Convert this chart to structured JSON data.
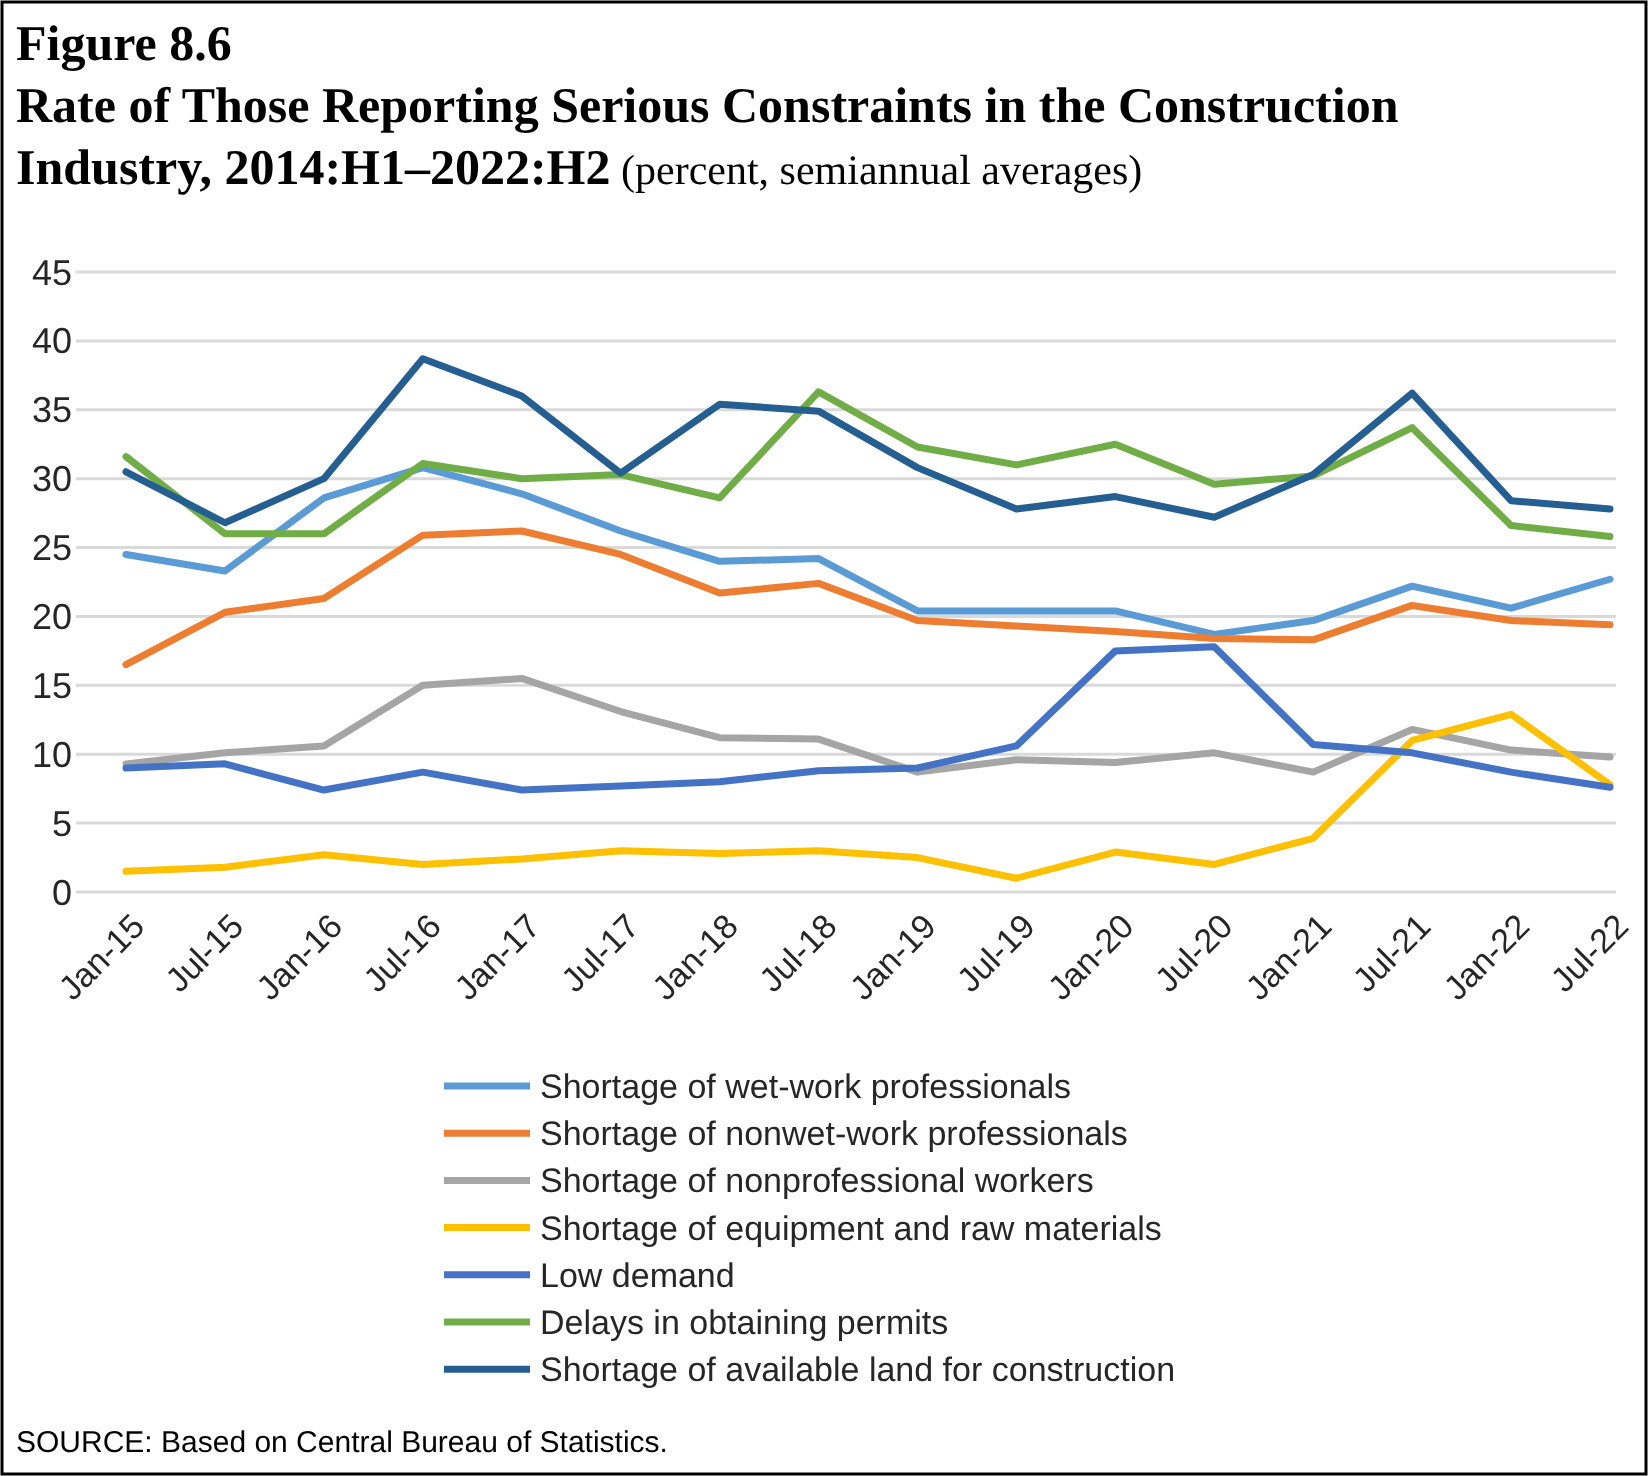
{
  "chart_data": {
    "type": "line",
    "title": "Figure 8.6\nRate of Those Reporting Serious Constraints in the Construction\nIndustry, 2014:H1–2022:H2",
    "subtitle": "(percent, semiannual averages)",
    "categories": [
      "Jan-15",
      "Jul-15",
      "Jan-16",
      "Jul-16",
      "Jan-17",
      "Jul-17",
      "Jan-18",
      "Jul-18",
      "Jan-19",
      "Jul-19",
      "Jan-20",
      "Jul-20",
      "Jan-21",
      "Jul-21",
      "Jan-22",
      "Jul-22"
    ],
    "ylim": [
      0,
      45
    ],
    "yticks": [
      0,
      5,
      10,
      15,
      20,
      25,
      30,
      35,
      40,
      45
    ],
    "grid": "y",
    "legend": "bottom",
    "marker": "none",
    "line_style": "solid",
    "annotations": [
      "SOURCE: Based on Central Bureau of Statistics."
    ],
    "series": [
      {
        "name": "Shortage of wet-work professionals",
        "color": "#5b9bd5",
        "values": [
          24.5,
          23.3,
          28.6,
          30.8,
          28.9,
          26.2,
          24.0,
          24.2,
          20.4,
          20.4,
          20.4,
          18.7,
          19.7,
          22.2,
          20.6,
          22.7
        ]
      },
      {
        "name": "Shortage of nonwet-work professionals",
        "color": "#ed7d31",
        "values": [
          16.5,
          20.3,
          21.3,
          25.9,
          26.2,
          24.5,
          21.7,
          22.4,
          19.7,
          19.3,
          18.9,
          18.4,
          18.3,
          20.8,
          19.7,
          19.4
        ]
      },
      {
        "name": "Shortage of nonprofessional workers",
        "color": "#a5a5a5",
        "values": [
          9.3,
          10.1,
          10.6,
          15.0,
          15.5,
          13.1,
          11.2,
          11.1,
          8.7,
          9.6,
          9.4,
          10.1,
          8.7,
          11.8,
          10.3,
          9.8
        ]
      },
      {
        "name": "Shortage of equipment and raw materials",
        "color": "#ffc000",
        "values": [
          1.5,
          1.8,
          2.7,
          2.0,
          2.4,
          3.0,
          2.8,
          3.0,
          2.5,
          1.0,
          2.9,
          2.0,
          3.9,
          11.0,
          12.9,
          7.8
        ]
      },
      {
        "name": "Low demand",
        "color": "#4472c4",
        "values": [
          9.0,
          9.3,
          7.4,
          8.7,
          7.4,
          7.7,
          8.0,
          8.8,
          9.0,
          10.6,
          17.5,
          17.8,
          10.7,
          10.1,
          8.7,
          7.6
        ]
      },
      {
        "name": "Delays in obtaining permits",
        "color": "#70ad47",
        "values": [
          31.6,
          26.0,
          26.0,
          31.1,
          30.0,
          30.3,
          28.6,
          36.3,
          32.3,
          31.0,
          32.5,
          29.6,
          30.2,
          33.7,
          26.6,
          25.8
        ]
      },
      {
        "name": "Shortage of available land for construction",
        "color": "#255e91",
        "values": [
          30.5,
          26.8,
          30.0,
          38.7,
          36.0,
          30.4,
          35.4,
          34.9,
          30.8,
          27.8,
          28.7,
          27.2,
          30.3,
          36.2,
          28.4,
          27.8
        ]
      }
    ]
  }
}
